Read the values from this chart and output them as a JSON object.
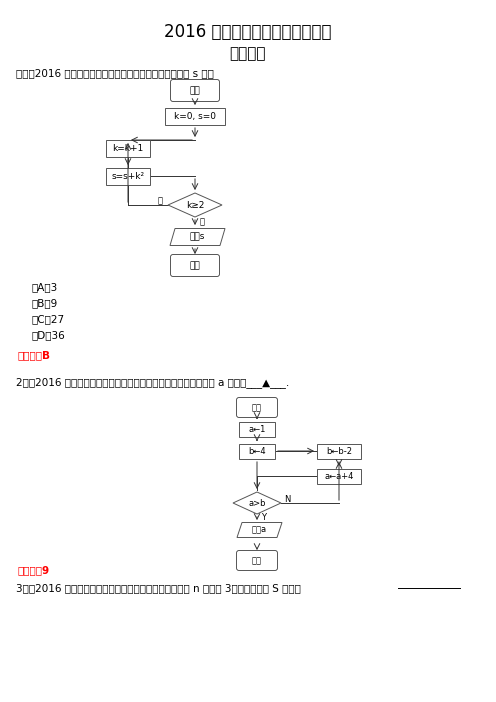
{
  "title1": "2016 年高考数学文试题分类汇编",
  "title2": "程序框图",
  "q1_text": "一、（2016 年北京高考）执行如下图的程序框图，输出的 s 值为",
  "q1_options": [
    "（A）3",
    "（B）9",
    "（C）27",
    "（D）36"
  ],
  "q1_answer": "【答案】B",
  "q2_text": "2、（2016 年江苏省高考）如图是一个算法的流程图，那么输出的 a 的值是___▲___.",
  "q2_answer": "【答案】9",
  "q3_text": "3、（2016 年山东高考）执行右边的程序框图，假设输入 n 的值为 3，那么输出的 S 的值为",
  "bg_color": "#ffffff",
  "text_color": "#000000",
  "answer_color": "#ff0000"
}
